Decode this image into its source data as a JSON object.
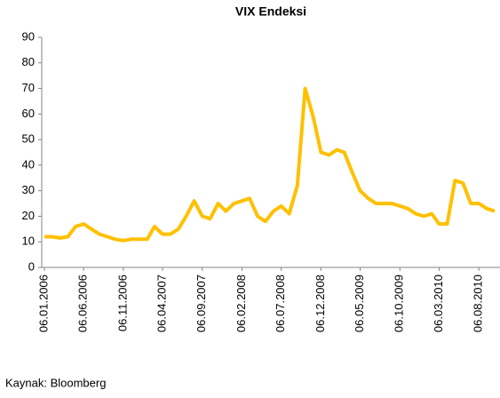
{
  "chart_data": {
    "type": "line",
    "title": "VIX Endeksi",
    "source": "Kaynak: Bloomberg",
    "x": [
      "06.01.2006",
      "06.02.2006",
      "06.03.2006",
      "06.04.2006",
      "06.05.2006",
      "06.06.2006",
      "06.07.2006",
      "06.08.2006",
      "06.09.2006",
      "06.10.2006",
      "06.11.2006",
      "06.12.2006",
      "06.01.2007",
      "06.02.2007",
      "06.03.2007",
      "06.04.2007",
      "06.05.2007",
      "06.06.2007",
      "06.07.2007",
      "06.08.2007",
      "06.09.2007",
      "06.10.2007",
      "06.11.2007",
      "06.12.2007",
      "06.01.2008",
      "06.02.2008",
      "06.03.2008",
      "06.04.2008",
      "06.05.2008",
      "06.06.2008",
      "06.07.2008",
      "06.08.2008",
      "06.09.2008",
      "06.10.2008",
      "06.11.2008",
      "06.12.2008",
      "06.01.2009",
      "06.02.2009",
      "06.03.2009",
      "06.04.2009",
      "06.05.2009",
      "06.06.2009",
      "06.07.2009",
      "06.08.2009",
      "06.09.2009",
      "06.10.2009",
      "06.11.2009",
      "06.12.2009",
      "06.01.2010",
      "06.02.2010",
      "06.03.2010",
      "06.04.2010",
      "06.05.2010",
      "06.06.2010",
      "06.07.2010",
      "06.08.2010",
      "06.09.2010",
      "06.10.2010"
    ],
    "series": [
      {
        "name": "VIX",
        "color": "#FFC000",
        "values": [
          12,
          12,
          11.5,
          12,
          16,
          17,
          15,
          13,
          12,
          11,
          10.5,
          11,
          11,
          11,
          16,
          13,
          13,
          15,
          20,
          26,
          20,
          19,
          25,
          22,
          25,
          26,
          27,
          20,
          18,
          22,
          24,
          21,
          32,
          70,
          59,
          45,
          44,
          46,
          45,
          37,
          30,
          27,
          25,
          25,
          25,
          24,
          23,
          21,
          20,
          21,
          17,
          17,
          34,
          33,
          25,
          25,
          23,
          22
        ]
      }
    ],
    "xlim": [
      "06.01.2006",
      "06.10.2010"
    ],
    "xticks": [
      "06.01.2006",
      "06.06.2006",
      "06.11.2006",
      "06.04.2007",
      "06.09.2007",
      "06.02.2008",
      "06.07.2008",
      "06.12.2008",
      "06.05.2009",
      "06.10.2009",
      "06.03.2010",
      "06.08.2010"
    ],
    "ylim": [
      0,
      90
    ],
    "yticks": [
      0,
      10,
      20,
      30,
      40,
      50,
      60,
      70,
      80,
      90
    ]
  }
}
